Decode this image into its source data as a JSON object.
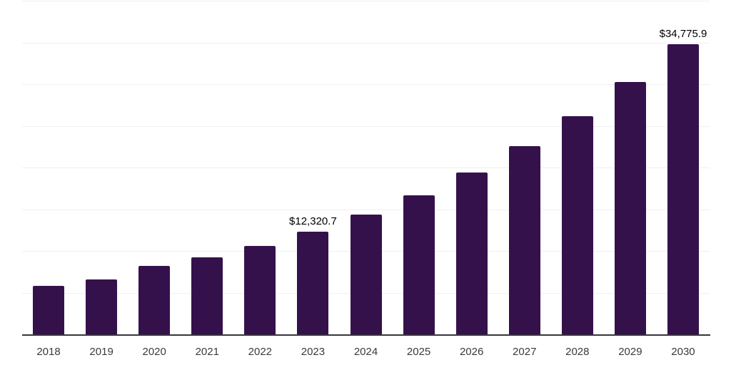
{
  "chart_data": {
    "type": "bar",
    "title": "",
    "xlabel": "",
    "ylabel": "",
    "categories": [
      "2018",
      "2019",
      "2020",
      "2021",
      "2022",
      "2023",
      "2024",
      "2025",
      "2026",
      "2027",
      "2028",
      "2029",
      "2030"
    ],
    "values": [
      5800,
      6600,
      8170,
      9250,
      10590,
      12320.7,
      14370,
      16700,
      19440,
      22600,
      26200,
      30300,
      34775.9
    ],
    "value_labels": {
      "2023": "$12,320.7",
      "2030": "$34,775.9"
    },
    "ylim": [
      0,
      40000
    ],
    "gridline_interval": 5000,
    "grid": "horizontal",
    "legend": "none",
    "y_axis_tick_labels_visible": false,
    "colors": {
      "bar": "#35114C",
      "axis_line": "#37373C",
      "gridline": "#F0F0F0",
      "tick_label": "#3A3A3A",
      "value_label": "#000000",
      "background": "#FFFFFF"
    }
  }
}
